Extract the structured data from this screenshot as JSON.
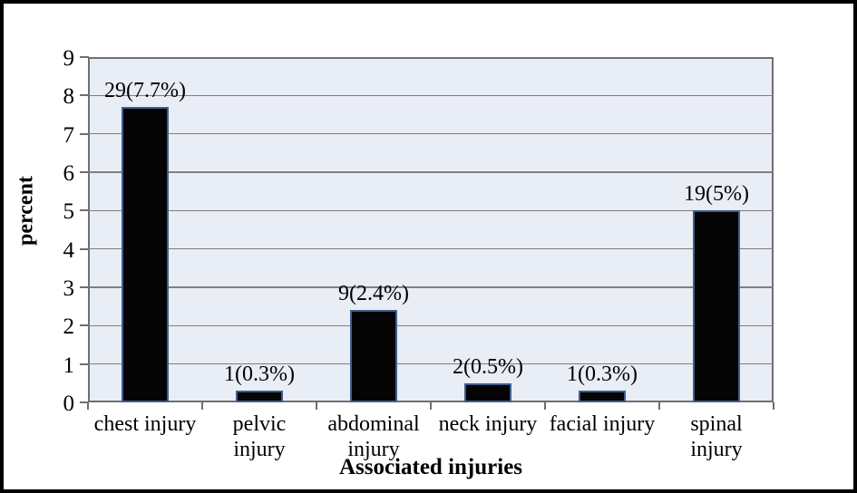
{
  "chart_data": {
    "type": "bar",
    "title": "",
    "xlabel": "Associated injuries",
    "ylabel": "percent",
    "categories": [
      "chest injury",
      "pelvic injury",
      "abdominal injury",
      "neck injury",
      "facial injury",
      "spinal injury"
    ],
    "category_label_lines": [
      [
        "chest injury"
      ],
      [
        "pelvic",
        "injury"
      ],
      [
        "abdominal",
        "injury"
      ],
      [
        "neck injury"
      ],
      [
        "facial injury"
      ],
      [
        "spinal",
        "injury"
      ]
    ],
    "values": [
      7.7,
      0.3,
      2.4,
      0.5,
      0.3,
      5
    ],
    "counts": [
      29,
      1,
      9,
      2,
      1,
      19
    ],
    "bar_labels": [
      "29(7.7%)",
      "1(0.3%)",
      "9(2.4%)",
      "2(0.5%)",
      "1(0.3%)",
      "19(5%)"
    ],
    "ylim": [
      0,
      9
    ],
    "yticks": [
      0,
      1,
      2,
      3,
      4,
      5,
      6,
      7,
      8,
      9
    ],
    "grid": "horizontal-solid",
    "legend_position": "none",
    "colors": {
      "bar_fill": "#040404",
      "bar_border": "#3f5e8e",
      "plot_background": "#e9edf5",
      "gridline": "#7f7f7f",
      "axis_line": "#6f6f6f",
      "text": "#000000",
      "figure_background": "#ffffff",
      "figure_border": "#000000"
    }
  }
}
